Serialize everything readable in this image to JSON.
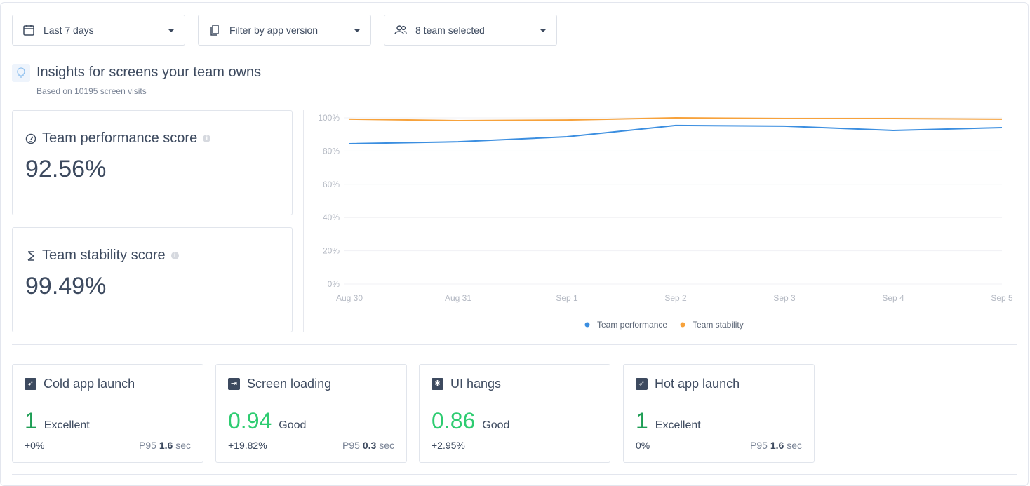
{
  "filters": [
    {
      "label": "Last 7 days",
      "icon": "calendar-icon"
    },
    {
      "label": "Filter by app version",
      "icon": "phone-copy-icon"
    },
    {
      "label": "8 team selected",
      "icon": "team-icon"
    }
  ],
  "header": {
    "title": "Insights for screens your team owns",
    "subtitle": "Based on 10195 screen visits",
    "icon": "lightbulb-icon"
  },
  "scores": [
    {
      "label": "Team performance score",
      "value": "92.56%",
      "icon": "gauge-icon"
    },
    {
      "label": "Team stability score",
      "value": "99.49%",
      "icon": "stability-icon"
    }
  ],
  "chart_data": {
    "type": "line",
    "x": [
      "Aug 30",
      "Aug 31",
      "Sep 1",
      "Sep 2",
      "Sep 3",
      "Sep 4",
      "Sep 5"
    ],
    "yticks": [
      "0%",
      "20%",
      "40%",
      "60%",
      "80%",
      "100%"
    ],
    "ylim": [
      0,
      100
    ],
    "grid": true,
    "legend": "bottom",
    "series": [
      {
        "name": "Team performance",
        "color": "#3b8ee0",
        "values": [
          84.4,
          85.6,
          88.6,
          95.4,
          95,
          92.4,
          94.1
        ]
      },
      {
        "name": "Team stability",
        "color": "#f7a23b",
        "values": [
          99.2,
          98.3,
          98.7,
          100,
          99.6,
          99.6,
          99.2
        ]
      }
    ]
  },
  "metrics": [
    {
      "label": "Cold app launch",
      "icon": "rocket-icon",
      "score": "1",
      "rating": "Excellent",
      "change": "+0%",
      "p95_label": "P95",
      "p95_value": "1.6",
      "p95_unit": "sec"
    },
    {
      "label": "Screen loading",
      "icon": "screen-loading-icon",
      "score": "0.94",
      "rating": "Good",
      "change": "+19.82%",
      "p95_label": "P95",
      "p95_value": "0.3",
      "p95_unit": "sec"
    },
    {
      "label": "UI hangs",
      "icon": "snowflake-icon",
      "score": "0.86",
      "rating": "Good",
      "change": "+2.95%"
    },
    {
      "label": "Hot app launch",
      "icon": "rocket-icon",
      "score": "1",
      "rating": "Excellent",
      "change": "0%",
      "p95_label": "P95",
      "p95_value": "1.6",
      "p95_unit": "sec"
    }
  ]
}
